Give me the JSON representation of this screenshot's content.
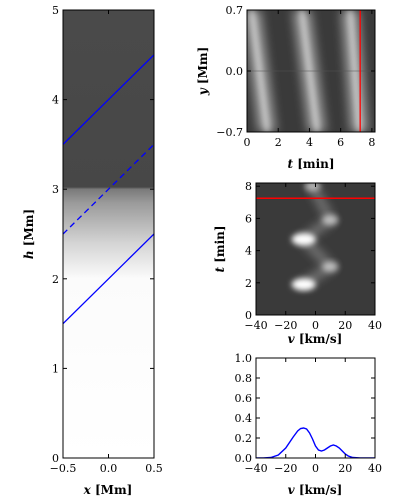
{
  "chart_data": [
    {
      "type": "heatmap",
      "panel": "left",
      "xlabel_var": "x",
      "xlabel_unit": " [Mm]",
      "ylabel_var": "h",
      "ylabel_unit": " [Mm]",
      "xlim": [
        -0.5,
        0.5
      ],
      "ylim": [
        0,
        5
      ],
      "xticks": [
        "−0.5",
        "0.0",
        "0.5"
      ],
      "yticks": [
        "0",
        "1",
        "2",
        "3",
        "4",
        "5"
      ],
      "colormap": {
        "dark": "#474747",
        "light": "#ffffff",
        "boundary_h": 3.0,
        "fade_bottom_h": 1.9
      },
      "series": [
        {
          "style": "solid",
          "color": "#0000ff",
          "x": [
            -0.5,
            0.5
          ],
          "y": [
            3.5,
            4.5
          ]
        },
        {
          "style": "dashed",
          "color": "#0000ff",
          "x": [
            -0.5,
            0.5
          ],
          "y": [
            2.5,
            3.5
          ]
        },
        {
          "style": "solid",
          "color": "#0000ff",
          "x": [
            -0.5,
            0.5
          ],
          "y": [
            1.5,
            2.5
          ]
        }
      ]
    },
    {
      "type": "heatmap",
      "panel": "top-right",
      "xlabel_var": "t",
      "xlabel_unit": " [min]",
      "ylabel_var": "y",
      "ylabel_unit": " [Mm]",
      "xlim": [
        0,
        8.2
      ],
      "ylim": [
        -0.7,
        0.7
      ],
      "xticks": [
        "0",
        "2",
        "4",
        "6",
        "8"
      ],
      "yticks": [
        "−0.7",
        "0.0",
        "0.7"
      ],
      "bands": [
        {
          "t_at_bottom": 1.3,
          "t_at_top": 0.3
        },
        {
          "t_at_bottom": 4.5,
          "t_at_top": 3.5
        },
        {
          "t_at_bottom": 7.2,
          "t_at_top": 6.6
        }
      ],
      "marker": {
        "color": "#ff0000",
        "t": 7.25
      }
    },
    {
      "type": "heatmap",
      "panel": "middle-right",
      "xlabel_var": "v",
      "xlabel_unit": " [km/s]",
      "ylabel_var": "t",
      "ylabel_unit": " [min]",
      "xlim": [
        -40,
        40
      ],
      "ylim": [
        0,
        8.2
      ],
      "xticks": [
        "−40",
        "−20",
        "0",
        "20",
        "40"
      ],
      "yticks": [
        "0",
        "2",
        "4",
        "6",
        "8"
      ],
      "peaks": [
        {
          "v": -8,
          "t": 1.9
        },
        {
          "v": 10,
          "t": 3.0
        },
        {
          "v": -8,
          "t": 4.7
        },
        {
          "v": 10,
          "t": 5.9
        },
        {
          "v": -2,
          "t": 8.0
        }
      ],
      "marker": {
        "color": "#ff0000",
        "t": 7.25
      }
    },
    {
      "type": "line",
      "panel": "bottom-right",
      "xlabel_var": "v",
      "xlabel_unit": " [km/s]",
      "xlim": [
        -40,
        40
      ],
      "ylim": [
        0,
        1.0
      ],
      "xticks": [
        "−40",
        "−20",
        "0",
        "20",
        "40"
      ],
      "yticks": [
        "0.0",
        "0.2",
        "0.4",
        "0.6",
        "0.8",
        "1.0"
      ],
      "series": [
        {
          "color": "#0000ff",
          "x": [
            -40,
            -35,
            -30,
            -25,
            -20,
            -15,
            -12,
            -10,
            -8,
            -6,
            -4,
            -2,
            0,
            2,
            4,
            6,
            8,
            10,
            12,
            14,
            16,
            18,
            20,
            22,
            25,
            30,
            35,
            40
          ],
          "y": [
            0.0,
            0.0,
            0.005,
            0.03,
            0.1,
            0.21,
            0.27,
            0.295,
            0.3,
            0.29,
            0.25,
            0.19,
            0.12,
            0.08,
            0.07,
            0.08,
            0.1,
            0.12,
            0.13,
            0.12,
            0.1,
            0.07,
            0.04,
            0.02,
            0.005,
            0.0,
            0.0,
            0.0
          ]
        }
      ]
    }
  ]
}
